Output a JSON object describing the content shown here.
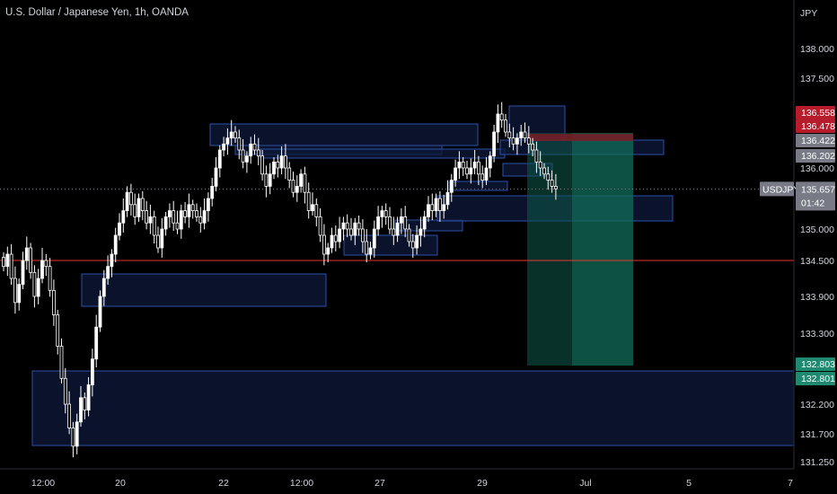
{
  "header": {
    "title": "U.S. Dollar / Japanese Yen, 1h, OANDA"
  },
  "colors": {
    "background": "#000000",
    "candle": "#ffffff",
    "zone_fill": "#0d1a3a",
    "zone_stroke": "#2d4fa8",
    "level_line": "#e53935",
    "current_tag": "#787b86",
    "stop_tag": "#b71c2c",
    "target_tag": "#1f8a70",
    "profit_fill": "#0f5a4a",
    "loss_fill": "#7a1c26"
  },
  "chart_data": {
    "type": "candlestick",
    "symbol_label": "USDJPY",
    "currency_label": "JPY",
    "y_ticks": [
      "138.000",
      "137.500",
      "136.000",
      "135.000",
      "134.500",
      "133.900",
      "133.300",
      "132.200",
      "131.700",
      "131.250"
    ],
    "x_ticks": [
      "12:00",
      "20",
      "22",
      "12:00",
      "27",
      "29",
      "Jul",
      "5",
      "7"
    ],
    "current_price": "135.657",
    "countdown": "01:42",
    "price_tags": [
      {
        "label": "136.558",
        "kind": "stop"
      },
      {
        "label": "136.478",
        "kind": "stop"
      },
      {
        "label": "136.422",
        "kind": "current"
      },
      {
        "label": "136.202",
        "kind": "current"
      },
      {
        "label": "132.803",
        "kind": "target"
      },
      {
        "label": "132.801",
        "kind": "target"
      }
    ],
    "horizontal_level": 134.5,
    "position": {
      "side": "short",
      "entry": 136.42,
      "stop": 136.56,
      "target": 132.8
    },
    "closes": [
      134.4,
      134.6,
      134.2,
      133.8,
      134.1,
      134.5,
      134.7,
      134.3,
      133.9,
      134.2,
      134.5,
      134.4,
      134.0,
      133.6,
      133.1,
      132.6,
      132.2,
      131.8,
      131.5,
      131.9,
      132.3,
      132.1,
      132.5,
      132.9,
      133.4,
      133.9,
      134.2,
      134.4,
      134.6,
      134.9,
      135.1,
      135.3,
      135.6,
      135.4,
      135.2,
      135.5,
      135.3,
      135.1,
      135.2,
      134.9,
      134.7,
      135.0,
      135.2,
      135.3,
      135.1,
      135.0,
      135.3,
      135.2,
      135.4,
      135.3,
      135.2,
      135.1,
      135.3,
      135.5,
      135.7,
      136.0,
      136.3,
      136.4,
      136.5,
      136.6,
      136.5,
      136.3,
      136.1,
      136.2,
      136.4,
      136.3,
      136.2,
      135.9,
      135.7,
      135.9,
      136.1,
      136.0,
      136.2,
      136.0,
      135.8,
      135.6,
      135.7,
      135.9,
      135.6,
      135.3,
      135.4,
      135.2,
      134.9,
      134.6,
      134.7,
      134.9,
      134.8,
      135.0,
      135.1,
      135.0,
      134.9,
      135.1,
      135.0,
      134.8,
      134.6,
      134.7,
      135.0,
      135.2,
      135.3,
      135.2,
      135.0,
      134.9,
      135.1,
      135.2,
      135.0,
      134.8,
      134.7,
      134.9,
      135.0,
      135.2,
      135.4,
      135.3,
      135.5,
      135.3,
      135.4,
      135.6,
      135.8,
      136.0,
      136.1,
      136.0,
      135.9,
      136.0,
      136.1,
      135.9,
      135.8,
      136.0,
      136.2,
      136.6,
      136.9,
      136.8,
      136.6,
      136.5,
      136.4,
      136.5,
      136.6,
      136.5,
      136.4,
      136.3,
      136.1,
      136.0,
      135.9,
      135.8,
      135.7,
      135.66
    ]
  }
}
